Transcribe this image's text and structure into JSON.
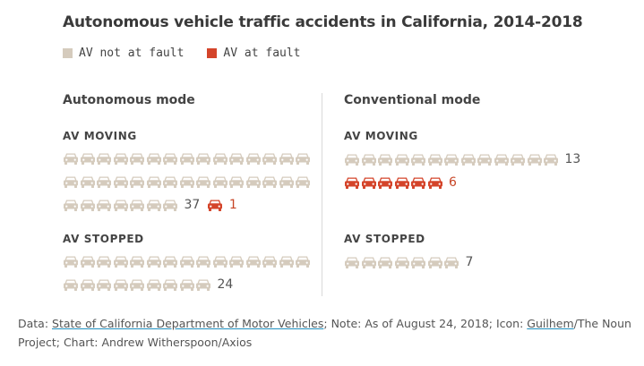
{
  "chart_data": {
    "type": "pictogram",
    "title": "Autonomous vehicle traffic accidents in California, 2014-2018",
    "legend": [
      {
        "key": "not_at_fault",
        "label": "AV not at fault",
        "color": "#d5cbbd"
      },
      {
        "key": "at_fault",
        "label": "AV at fault",
        "color": "#d4442a"
      }
    ],
    "panels": [
      {
        "name": "Autonomous mode",
        "groups": [
          {
            "label": "AV MOVING",
            "not_at_fault": 37,
            "at_fault": 1,
            "not_at_fault_label": "37",
            "at_fault_label": "1"
          },
          {
            "label": "AV STOPPED",
            "not_at_fault": 24,
            "at_fault": 0,
            "not_at_fault_label": "24"
          }
        ]
      },
      {
        "name": "Conventional mode",
        "groups": [
          {
            "label": "AV MOVING",
            "not_at_fault": 13,
            "at_fault": 6,
            "not_at_fault_label": "13",
            "at_fault_label": "6"
          },
          {
            "label": "AV STOPPED",
            "not_at_fault": 7,
            "at_fault": 0,
            "not_at_fault_label": "7"
          }
        ]
      }
    ],
    "icons_per_row": 15
  },
  "footer": {
    "data_prefix": "Data: ",
    "source_link": "State of California Department of Motor Vehicles",
    "note": "; Note: As of August 24, 2018; Icon: ",
    "icon_credit_link": "Guilhem",
    "icon_credit_rest": "/The Noun Project; Chart: Andrew Witherspoon/Axios"
  }
}
